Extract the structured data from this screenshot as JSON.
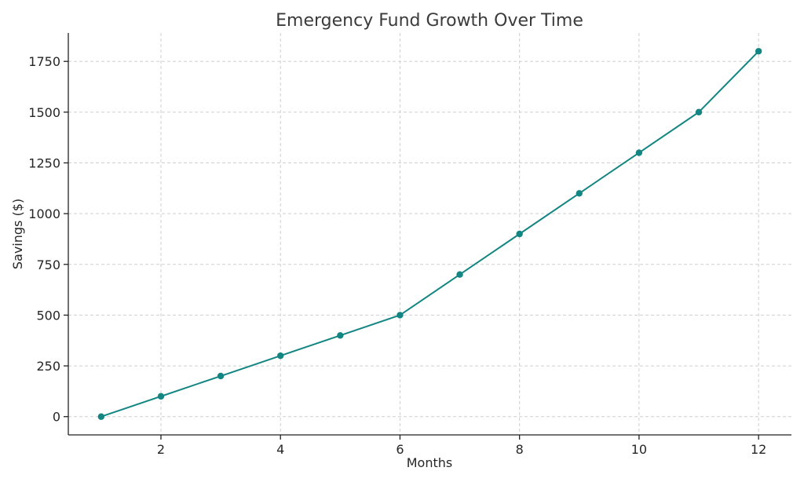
{
  "chart_data": {
    "type": "line",
    "title": "Emergency Fund Growth Over Time",
    "xlabel": "Months",
    "ylabel": "Savings ($)",
    "x": [
      1,
      2,
      3,
      4,
      5,
      6,
      7,
      8,
      9,
      10,
      11,
      12
    ],
    "series": [
      {
        "values": [
          0,
          100,
          200,
          300,
          400,
          500,
          700,
          900,
          1100,
          1300,
          1500,
          1800
        ],
        "color": "#138683"
      }
    ],
    "xlim": [
      0.45,
      12.55
    ],
    "ylim": [
      -90,
      1890
    ],
    "xticks": [
      2,
      4,
      6,
      8,
      10,
      12
    ],
    "yticks": [
      0,
      250,
      500,
      750,
      1000,
      1250,
      1500,
      1750
    ],
    "grid": true,
    "marker": "circle"
  }
}
